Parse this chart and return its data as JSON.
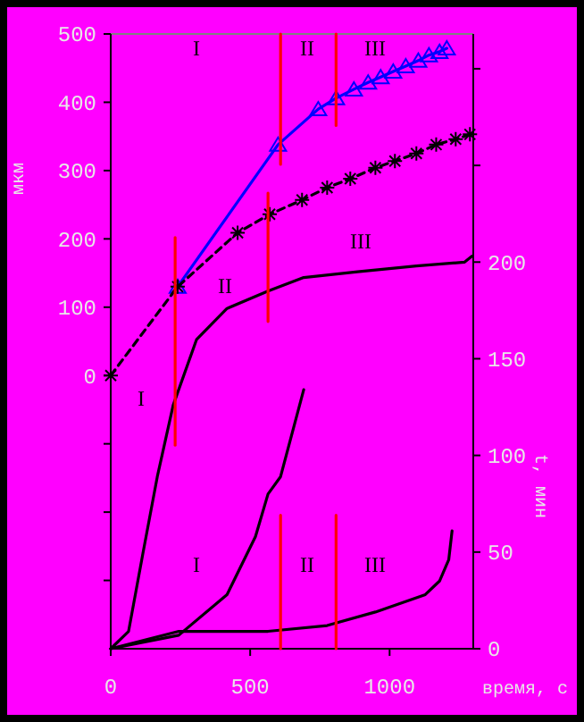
{
  "chart_data": {
    "type": "line",
    "xlabel": "время, с",
    "ylabel": "мкм",
    "y2label": "t, мин",
    "xlim": [
      0,
      1300
    ],
    "xticks": [
      0,
      500,
      1000
    ],
    "ylim": [
      -400,
      500
    ],
    "yticks": [
      {
        "value": -300,
        "label": null
      },
      {
        "value": -200,
        "label": null
      },
      {
        "value": -100,
        "label": null
      },
      0,
      100,
      200,
      300,
      400,
      500
    ],
    "y2lim": [
      0,
      318
    ],
    "y2ticks": [
      0,
      50,
      100,
      150,
      200,
      {
        "value": 250,
        "label": null
      },
      {
        "value": 300,
        "label": null
      }
    ],
    "grid": false,
    "marker": "none",
    "line_style": "solid",
    "series": [
      {
        "color": "#0000ff",
        "marker": "triangle",
        "x": [
          240,
          600,
          744,
          808,
          872,
          923,
          968,
          1013,
          1058,
          1103,
          1141,
          1179,
          1205
        ],
        "values": [
          130,
          338,
          390,
          406,
          419,
          429,
          437,
          445,
          453,
          461,
          469,
          474,
          479
        ]
      },
      {
        "color": "#000000",
        "marker": "cross",
        "line_style": "dashed",
        "x": [
          0,
          240,
          455,
          570,
          686,
          776,
          859,
          949,
          1019,
          1096,
          1167,
          1237,
          1288
        ],
        "values": [
          0,
          130,
          209,
          236,
          257,
          275,
          288,
          304,
          314,
          325,
          338,
          346,
          353
        ]
      },
      {
        "color": "#000000",
        "axis": "y2",
        "x": [
          0,
          64,
          115,
          167,
          224,
          308,
          417,
          564,
          692,
          885,
          1096,
          1269,
          1295
        ],
        "values": [
          0,
          9,
          49,
          89,
          126,
          160,
          176,
          185,
          192,
          195,
          198,
          200,
          203
        ]
      },
      {
        "color": "#000000",
        "axis": "y2",
        "x": [
          0,
          244,
          417,
          519,
          564,
          609,
          692
        ],
        "values": [
          0,
          7,
          28,
          58,
          80,
          89,
          134
        ]
      },
      {
        "color": "#000000",
        "axis": "y2",
        "x": [
          0,
          244,
          417,
          564,
          776,
          949,
          1128,
          1179,
          1212,
          1224
        ],
        "values": [
          0,
          9,
          9,
          9,
          12,
          19,
          28,
          35,
          46,
          61
        ]
      },
      {
        "color": "#ff0000",
        "x": [
          231,
          231
        ],
        "values": [
          202,
          -102
        ]
      },
      {
        "color": "#ff0000",
        "x": [
          564,
          564
        ],
        "values": [
          267,
          79
        ]
      },
      {
        "color": "#ff0000",
        "x": [
          609,
          609
        ],
        "values": [
          500,
          309
        ]
      },
      {
        "color": "#ff0000",
        "x": [
          808,
          808
        ],
        "values": [
          500,
          366
        ]
      },
      {
        "color": "#ff0000",
        "axis": "y2",
        "x": [
          609,
          609
        ],
        "values": [
          69,
          0
        ]
      },
      {
        "color": "#ff0000",
        "axis": "y2",
        "x": [
          808,
          808
        ],
        "values": [
          69,
          0
        ]
      }
    ],
    "annotations": [
      "I",
      "II",
      "III",
      "II",
      "III",
      "I",
      "I",
      "II",
      "III"
    ]
  }
}
